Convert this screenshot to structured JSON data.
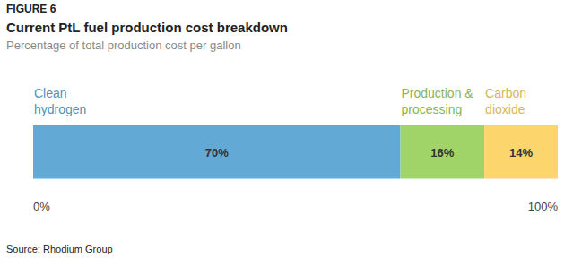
{
  "chart_data": {
    "type": "bar",
    "figure_label": "FIGURE 6",
    "title": "Current PtL fuel production cost breakdown",
    "subtitle": "Percentage of total production cost per gallon",
    "source": "Source: Rhodium Group",
    "orientation": "horizontal",
    "stacked": true,
    "data_labels": true,
    "categories": [
      null
    ],
    "series": [
      {
        "name": "Clean hydrogen",
        "color": "#62aad5",
        "values": [
          70
        ],
        "value_labels": [
          "70%"
        ]
      },
      {
        "name": "Production & processing",
        "color": "#a0d468",
        "values": [
          16
        ],
        "value_labels": [
          "16%"
        ]
      },
      {
        "name": "Carbon dioxide",
        "color": "#fcd56c",
        "values": [
          14
        ],
        "value_labels": [
          "14%"
        ]
      }
    ],
    "xlim": [
      0,
      100
    ],
    "xticks": [
      {
        "value": 0,
        "label": "0%"
      },
      {
        "value": 100,
        "label": "100%"
      }
    ]
  }
}
